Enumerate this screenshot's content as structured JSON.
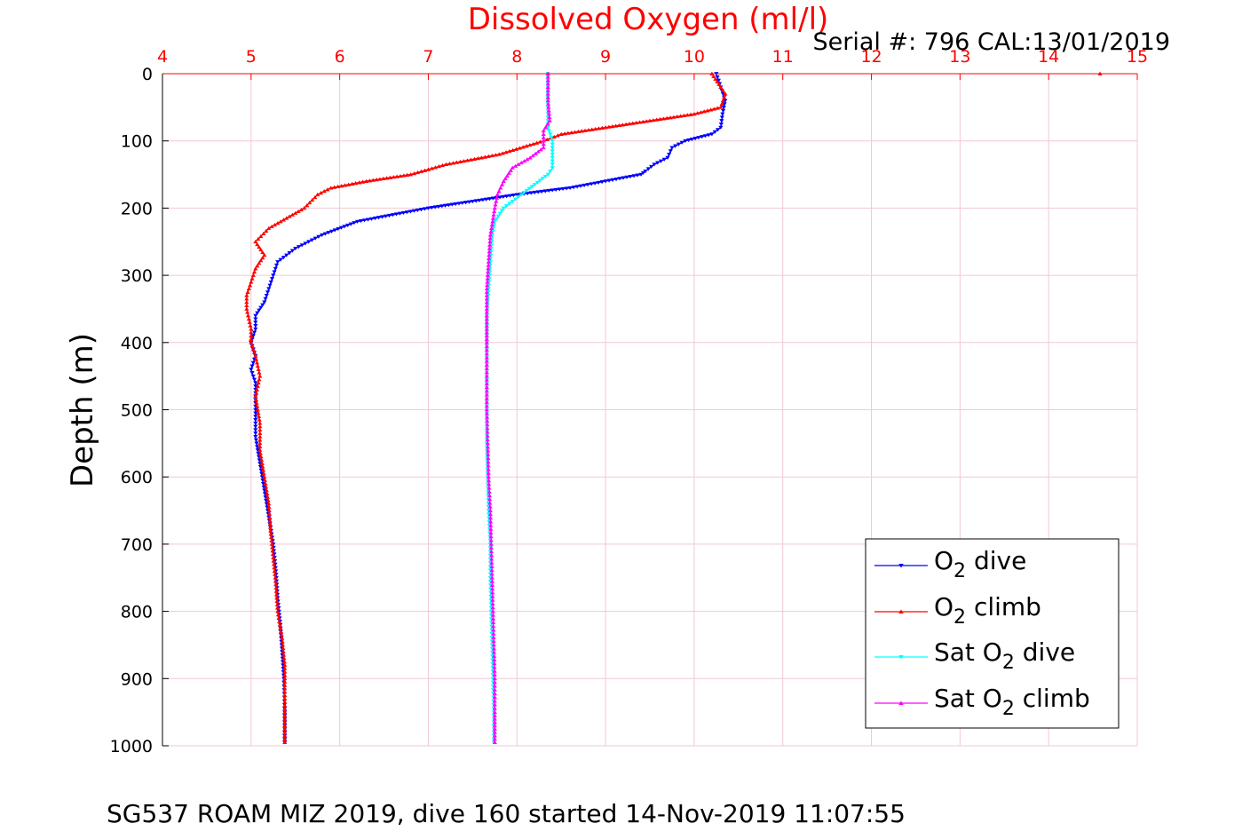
{
  "figure": {
    "serial_text": "Serial #: 796  CAL:13/01/2019",
    "footer": "SG537 ROAM MIZ 2019, dive 160 started 14-Nov-2019 11:07:55"
  },
  "chart_data": {
    "type": "line",
    "title": "Dissolved Oxygen (ml/l)",
    "xlabel": "",
    "ylabel": "Depth (m)",
    "xlim": [
      4,
      15
    ],
    "ylim": [
      0,
      1000
    ],
    "y_reversed": true,
    "x_axis_position": "top",
    "x_ticks": [
      "4",
      "5",
      "6",
      "7",
      "8",
      "9",
      "10",
      "11",
      "12",
      "13",
      "14",
      "15"
    ],
    "y_ticks": [
      "0",
      "100",
      "200",
      "300",
      "400",
      "500",
      "600",
      "700",
      "800",
      "900",
      "1000"
    ],
    "grid": true,
    "colors": {
      "title": "#ff0000",
      "x_ticks": "#ff0000",
      "grid": "#f2c8d4",
      "axis": "#000000"
    },
    "legend": {
      "position": "bottom-right"
    },
    "series": [
      {
        "name": "dive",
        "legend_prefix": "O",
        "legend_sub": "2",
        "legend_suffix": " dive",
        "color": "#0000ff",
        "marker": "down-triangle",
        "points": [
          [
            10.25,
            0
          ],
          [
            10.3,
            20
          ],
          [
            10.35,
            40
          ],
          [
            10.32,
            60
          ],
          [
            10.3,
            80
          ],
          [
            10.2,
            90
          ],
          [
            9.9,
            100
          ],
          [
            9.75,
            110
          ],
          [
            9.7,
            125
          ],
          [
            9.55,
            135
          ],
          [
            9.45,
            145
          ],
          [
            9.4,
            150
          ],
          [
            9.0,
            160
          ],
          [
            8.6,
            170
          ],
          [
            8.0,
            180
          ],
          [
            7.5,
            190
          ],
          [
            7.0,
            200
          ],
          [
            6.6,
            210
          ],
          [
            6.2,
            220
          ],
          [
            5.8,
            240
          ],
          [
            5.5,
            260
          ],
          [
            5.3,
            280
          ],
          [
            5.25,
            300
          ],
          [
            5.2,
            320
          ],
          [
            5.15,
            340
          ],
          [
            5.05,
            360
          ],
          [
            5.05,
            380
          ],
          [
            5.0,
            400
          ],
          [
            5.05,
            420
          ],
          [
            5.0,
            440
          ],
          [
            5.05,
            460
          ],
          [
            5.05,
            500
          ],
          [
            5.05,
            540
          ],
          [
            5.1,
            580
          ],
          [
            5.15,
            620
          ],
          [
            5.2,
            660
          ],
          [
            5.25,
            700
          ],
          [
            5.28,
            740
          ],
          [
            5.3,
            780
          ],
          [
            5.33,
            820
          ],
          [
            5.35,
            860
          ],
          [
            5.37,
            900
          ],
          [
            5.38,
            950
          ],
          [
            5.38,
            995
          ]
        ]
      },
      {
        "name": "climb",
        "legend_prefix": "O",
        "legend_sub": "2",
        "legend_suffix": " climb",
        "color": "#ff0000",
        "marker": "up-triangle",
        "points": [
          [
            10.2,
            0
          ],
          [
            10.3,
            20
          ],
          [
            10.35,
            30
          ],
          [
            10.3,
            50
          ],
          [
            10.0,
            60
          ],
          [
            9.5,
            70
          ],
          [
            9.0,
            80
          ],
          [
            8.5,
            90
          ],
          [
            8.3,
            100
          ],
          [
            7.8,
            120
          ],
          [
            7.2,
            135
          ],
          [
            6.8,
            150
          ],
          [
            6.3,
            160
          ],
          [
            5.9,
            170
          ],
          [
            5.75,
            180
          ],
          [
            5.6,
            200
          ],
          [
            5.4,
            215
          ],
          [
            5.2,
            230
          ],
          [
            5.05,
            250
          ],
          [
            5.15,
            270
          ],
          [
            5.05,
            290
          ],
          [
            5.0,
            310
          ],
          [
            4.95,
            330
          ],
          [
            4.95,
            350
          ],
          [
            5.0,
            380
          ],
          [
            5.0,
            400
          ],
          [
            5.05,
            420
          ],
          [
            5.1,
            450
          ],
          [
            5.05,
            480
          ],
          [
            5.1,
            520
          ],
          [
            5.1,
            560
          ],
          [
            5.15,
            600
          ],
          [
            5.2,
            640
          ],
          [
            5.22,
            680
          ],
          [
            5.25,
            720
          ],
          [
            5.28,
            760
          ],
          [
            5.3,
            800
          ],
          [
            5.35,
            840
          ],
          [
            5.38,
            880
          ],
          [
            5.38,
            920
          ],
          [
            5.38,
            960
          ],
          [
            5.38,
            995
          ]
        ]
      },
      {
        "name": "Sat dive",
        "legend_prefix": "Sat O",
        "legend_sub": "2",
        "legend_suffix": " dive",
        "color": "#00ffff",
        "marker": "down-triangle",
        "points": [
          [
            8.35,
            0
          ],
          [
            8.35,
            40
          ],
          [
            8.35,
            80
          ],
          [
            8.4,
            100
          ],
          [
            8.4,
            120
          ],
          [
            8.4,
            140
          ],
          [
            8.35,
            150
          ],
          [
            8.2,
            165
          ],
          [
            8.05,
            180
          ],
          [
            7.85,
            200
          ],
          [
            7.75,
            220
          ],
          [
            7.72,
            240
          ],
          [
            7.7,
            280
          ],
          [
            7.68,
            320
          ],
          [
            7.66,
            360
          ],
          [
            7.66,
            400
          ],
          [
            7.66,
            450
          ],
          [
            7.66,
            500
          ],
          [
            7.66,
            550
          ],
          [
            7.67,
            600
          ],
          [
            7.68,
            650
          ],
          [
            7.7,
            700
          ],
          [
            7.7,
            750
          ],
          [
            7.71,
            800
          ],
          [
            7.72,
            850
          ],
          [
            7.73,
            900
          ],
          [
            7.74,
            950
          ],
          [
            7.74,
            995
          ]
        ]
      },
      {
        "name": "Sat climb",
        "legend_prefix": "Sat O",
        "legend_sub": "2",
        "legend_suffix": " climb",
        "color": "#ff00ff",
        "marker": "up-triangle",
        "points": [
          [
            8.35,
            0
          ],
          [
            8.35,
            40
          ],
          [
            8.37,
            70
          ],
          [
            8.3,
            85
          ],
          [
            8.3,
            110
          ],
          [
            8.15,
            125
          ],
          [
            7.95,
            140
          ],
          [
            7.85,
            160
          ],
          [
            7.78,
            180
          ],
          [
            7.75,
            200
          ],
          [
            7.7,
            240
          ],
          [
            7.68,
            280
          ],
          [
            7.66,
            320
          ],
          [
            7.66,
            360
          ],
          [
            7.66,
            400
          ],
          [
            7.66,
            450
          ],
          [
            7.66,
            500
          ],
          [
            7.67,
            550
          ],
          [
            7.68,
            600
          ],
          [
            7.7,
            650
          ],
          [
            7.71,
            700
          ],
          [
            7.72,
            750
          ],
          [
            7.73,
            800
          ],
          [
            7.74,
            850
          ],
          [
            7.75,
            900
          ],
          [
            7.75,
            950
          ],
          [
            7.75,
            995
          ]
        ]
      }
    ]
  }
}
